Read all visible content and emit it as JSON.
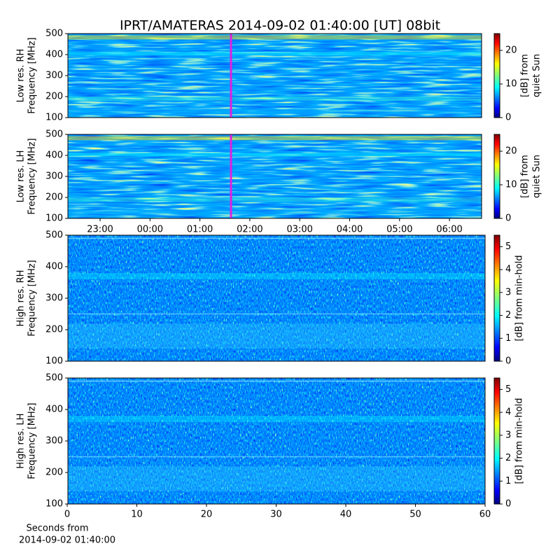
{
  "chart_data": [
    {
      "type": "spectrogram",
      "title": "IPRT/AMATERAS 2014-09-02 01:40:00 [UT]   08bit",
      "ylabel": [
        "Low res. RH",
        "Frequency [MHz]"
      ],
      "ylim": [
        100,
        500
      ],
      "yticks": [
        100,
        200,
        300,
        400,
        500
      ],
      "clim": [
        0,
        25
      ],
      "cticks": [
        0,
        10,
        20
      ],
      "clabel": [
        "[dB] from",
        "quiet Sun"
      ]
    },
    {
      "type": "spectrogram",
      "ylabel": [
        "Low res. LH",
        "Frequency [MHz]"
      ],
      "ylim": [
        100,
        500
      ],
      "yticks": [
        100,
        200,
        300,
        400,
        500
      ],
      "clim": [
        0,
        25
      ],
      "cticks": [
        0,
        10,
        20
      ],
      "clabel": [
        "[dB] from",
        "quiet Sun"
      ],
      "xticks": [
        "23:00",
        "00:00",
        "01:00",
        "02:00",
        "03:00",
        "04:00",
        "05:00",
        "06:00"
      ]
    },
    {
      "type": "spectrogram",
      "ylabel": [
        "High res. RH",
        "Frequency [MHz]"
      ],
      "ylim": [
        100,
        500
      ],
      "yticks": [
        100,
        200,
        300,
        400,
        500
      ],
      "clim": [
        0,
        5.5
      ],
      "cticks": [
        0,
        1,
        2,
        3,
        4,
        5
      ],
      "clabel": [
        "[dB] from min-hold"
      ]
    },
    {
      "type": "spectrogram",
      "ylabel": [
        "High res. LH",
        "Frequency [MHz]"
      ],
      "ylim": [
        100,
        500
      ],
      "yticks": [
        100,
        200,
        300,
        400,
        500
      ],
      "clim": [
        0,
        5.5
      ],
      "cticks": [
        0,
        1,
        2,
        3,
        4,
        5
      ],
      "clabel": [
        "[dB] from min-hold"
      ],
      "xlim": [
        0,
        60
      ],
      "xticks": [
        0,
        10,
        20,
        30,
        40,
        50,
        60
      ],
      "xlabel": [
        "Seconds from",
        "2014-09-02 01:40:00"
      ]
    }
  ]
}
